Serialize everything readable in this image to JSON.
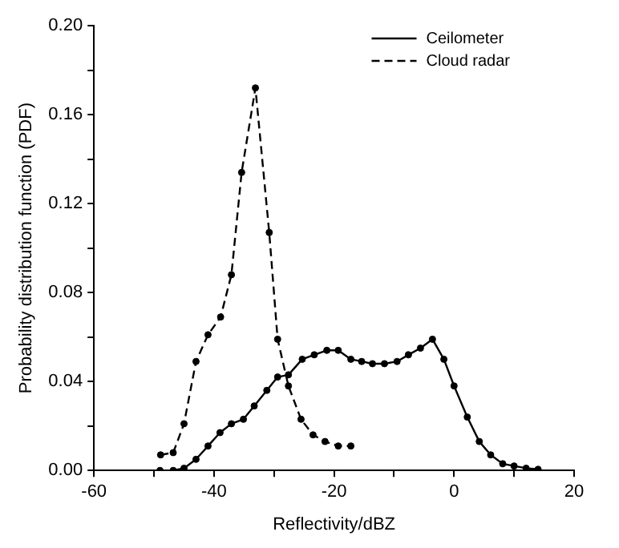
{
  "chart_data": {
    "type": "line",
    "xlabel": "Reflectivity/dBZ",
    "ylabel": "Probability distribution function (PDF)",
    "xlim": [
      -60,
      20
    ],
    "xticks": [
      -60,
      {
        "value": -50,
        "label": null
      },
      -40,
      {
        "value": -30,
        "label": null
      },
      -20,
      {
        "value": -10,
        "label": null
      },
      0,
      {
        "value": 10,
        "label": null
      },
      20
    ],
    "ylim": [
      0,
      0.2
    ],
    "yticks": [
      {
        "value": 0,
        "label": "0.00"
      },
      {
        "value": 0.02,
        "label": null
      },
      0.04,
      {
        "value": 0.06,
        "label": null
      },
      0.08,
      {
        "value": 0.1,
        "label": null
      },
      0.12,
      {
        "value": 0.14,
        "label": null
      },
      0.16,
      {
        "value": 0.18,
        "label": null
      },
      {
        "value": 0.2,
        "label": "0.20"
      }
    ],
    "grid": false,
    "legend": "top right",
    "marker": "circle",
    "series": [
      {
        "name": "Ceilometer",
        "color": "#000000",
        "line_style": "solid",
        "x": [
          -49,
          -46.8,
          -45,
          -43,
          -41,
          -39,
          -37.1,
          -35.1,
          -33.3,
          -31.2,
          -29.4,
          -27.6,
          -25.3,
          -23.3,
          -21.2,
          -19.3,
          -17.2,
          -15.4,
          -13.6,
          -11.6,
          -9.5,
          -7.6,
          -5.6,
          -3.6,
          -1.7,
          0,
          2.2,
          4.2,
          6.1,
          8.1,
          10,
          12,
          14
        ],
        "values": [
          0,
          0,
          0.001,
          0.005,
          0.011,
          0.017,
          0.021,
          0.023,
          0.029,
          0.036,
          0.042,
          0.043,
          0.05,
          0.052,
          0.054,
          0.054,
          0.05,
          0.049,
          0.048,
          0.048,
          0.049,
          0.052,
          0.055,
          0.059,
          0.05,
          0.038,
          0.024,
          0.013,
          0.007,
          0.003,
          0.002,
          0.001,
          0.0005
        ]
      },
      {
        "name": "Cloud radar",
        "color": "#000000",
        "line_style": "dashed",
        "x": [
          -48.9,
          -46.8,
          -45,
          -43,
          -41,
          -38.9,
          -37.1,
          -35.4,
          -33.1,
          -30.8,
          -29.4,
          -27.6,
          -25.5,
          -23.5,
          -21.5,
          -19.3,
          -17.2
        ],
        "values": [
          0.007,
          0.008,
          0.021,
          0.049,
          0.061,
          0.069,
          0.088,
          0.134,
          0.172,
          0.107,
          0.059,
          0.038,
          0.023,
          0.016,
          0.013,
          0.011,
          0.011
        ]
      }
    ]
  }
}
